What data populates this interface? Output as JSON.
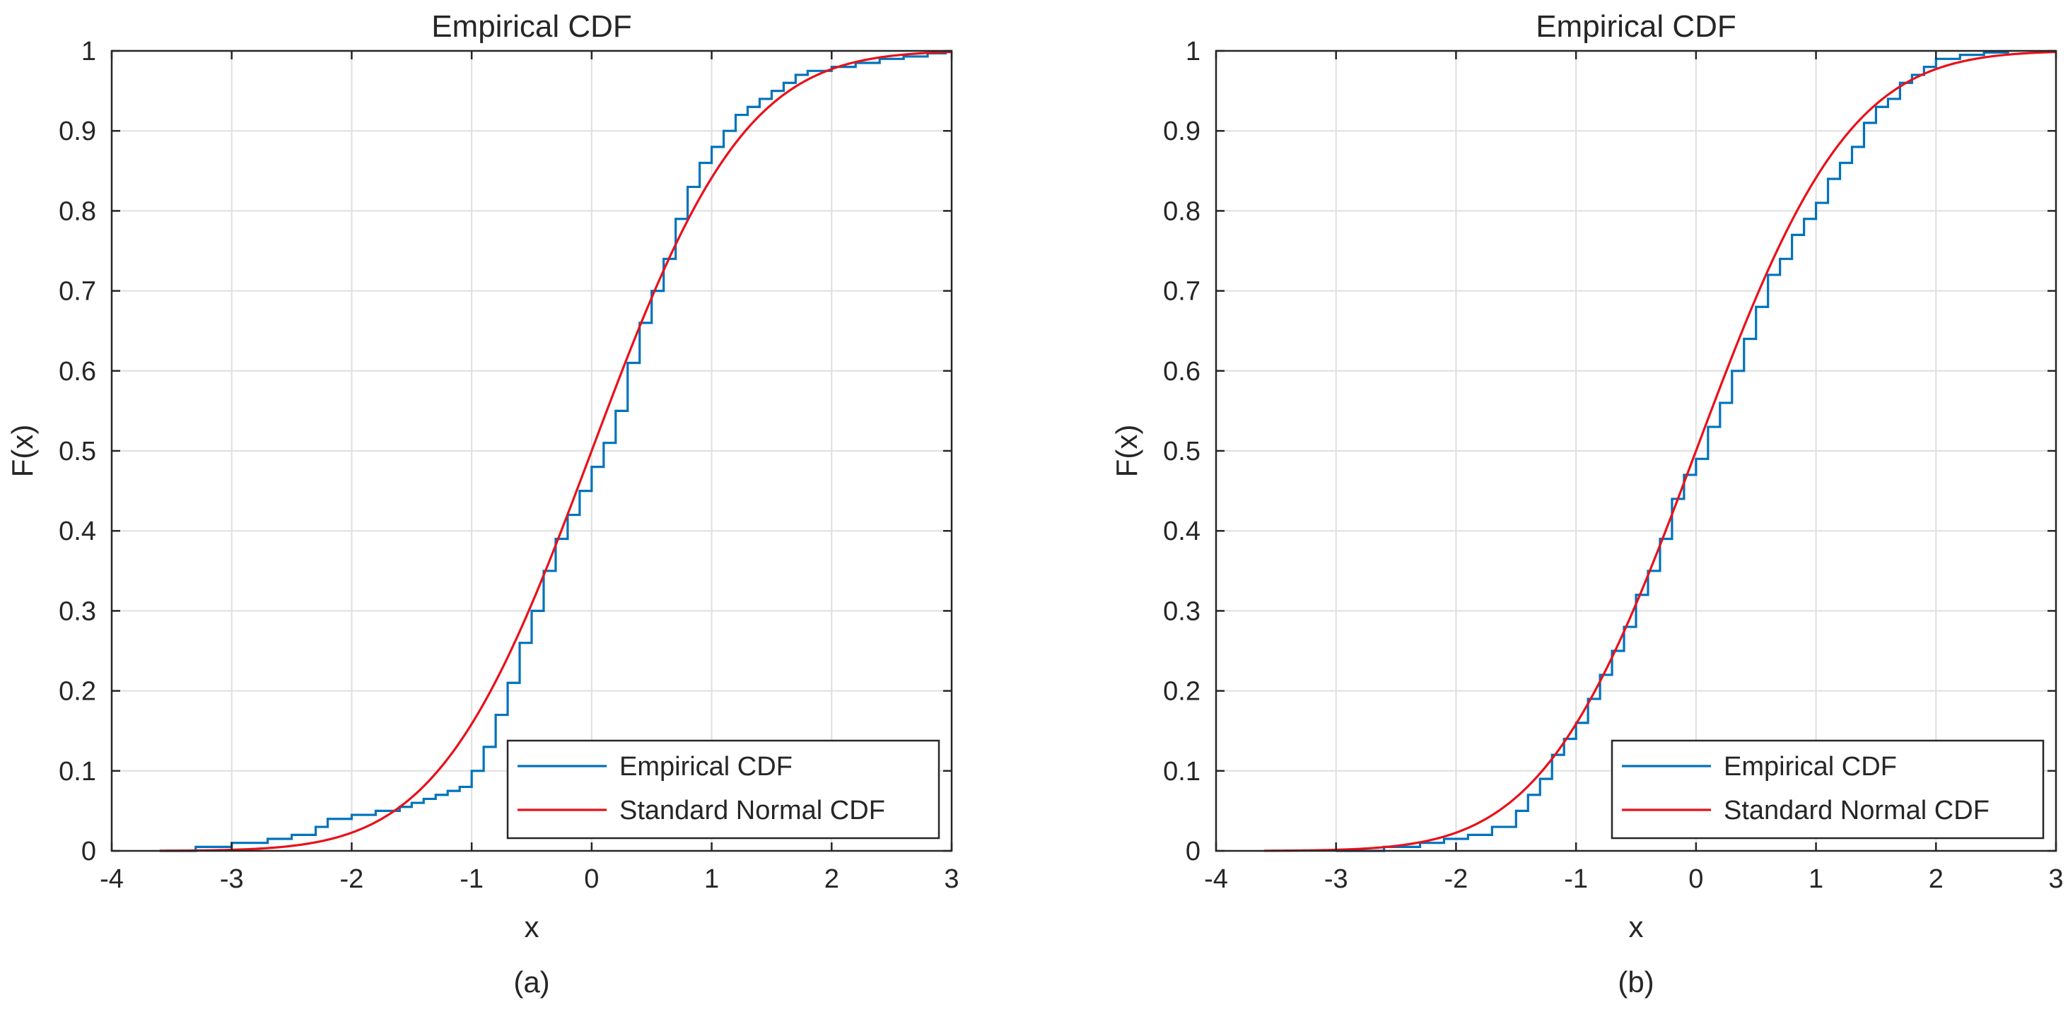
{
  "colors": {
    "empirical": "#0072BD",
    "normal": "#E8111A",
    "grid": "#DFDFDF",
    "axis": "#262626",
    "background": "#FFFFFF"
  },
  "chart_data": [
    {
      "type": "line",
      "panel_label": "(a)",
      "title": "Empirical CDF",
      "xlabel": "x",
      "ylabel": "F(x)",
      "xlim": [
        -4,
        3
      ],
      "ylim": [
        0,
        1
      ],
      "xticks": [
        "-4",
        "-3",
        "-2",
        "-1",
        "0",
        "1",
        "2",
        "3"
      ],
      "yticks": [
        "0",
        "0.1",
        "0.2",
        "0.3",
        "0.4",
        "0.5",
        "0.6",
        "0.7",
        "0.8",
        "0.9",
        "1"
      ],
      "grid": true,
      "legend": {
        "position": "bottom-right",
        "entries": [
          "Empirical CDF",
          "Standard Normal CDF"
        ]
      },
      "series": [
        {
          "name": "Empirical CDF",
          "style": "stairs",
          "x": [
            -3.6,
            -3.3,
            -3.0,
            -2.7,
            -2.5,
            -2.3,
            -2.2,
            -2.0,
            -1.9,
            -1.8,
            -1.7,
            -1.6,
            -1.5,
            -1.4,
            -1.3,
            -1.2,
            -1.1,
            -1.0,
            -0.9,
            -0.8,
            -0.7,
            -0.6,
            -0.5,
            -0.4,
            -0.3,
            -0.2,
            -0.1,
            0.0,
            0.1,
            0.2,
            0.3,
            0.4,
            0.5,
            0.6,
            0.7,
            0.8,
            0.9,
            1.0,
            1.1,
            1.2,
            1.3,
            1.4,
            1.5,
            1.6,
            1.7,
            1.8,
            2.0,
            2.2,
            2.4,
            2.6,
            2.8,
            2.95
          ],
          "y": [
            0.0,
            0.005,
            0.01,
            0.015,
            0.02,
            0.03,
            0.04,
            0.045,
            0.045,
            0.05,
            0.05,
            0.055,
            0.06,
            0.065,
            0.07,
            0.075,
            0.08,
            0.1,
            0.13,
            0.17,
            0.21,
            0.26,
            0.3,
            0.35,
            0.39,
            0.42,
            0.45,
            0.48,
            0.51,
            0.55,
            0.61,
            0.66,
            0.7,
            0.74,
            0.79,
            0.83,
            0.86,
            0.88,
            0.9,
            0.92,
            0.93,
            0.94,
            0.95,
            0.96,
            0.97,
            0.975,
            0.98,
            0.985,
            0.99,
            0.993,
            0.997,
            1.0
          ]
        },
        {
          "name": "Standard Normal CDF",
          "style": "normal-cdf",
          "mu": 0,
          "sigma": 1,
          "x_range": [
            -3.6,
            3
          ]
        }
      ]
    },
    {
      "type": "line",
      "panel_label": "(b)",
      "title": "Empirical CDF",
      "xlabel": "x",
      "ylabel": "F(x)",
      "xlim": [
        -4,
        3
      ],
      "ylim": [
        0,
        1
      ],
      "xticks": [
        "-4",
        "-3",
        "-2",
        "-1",
        "0",
        "1",
        "2",
        "3"
      ],
      "yticks": [
        "0",
        "0.1",
        "0.2",
        "0.3",
        "0.4",
        "0.5",
        "0.6",
        "0.7",
        "0.8",
        "0.9",
        "1"
      ],
      "grid": true,
      "legend": {
        "position": "bottom-right",
        "entries": [
          "Empirical CDF",
          "Standard Normal CDF"
        ]
      },
      "series": [
        {
          "name": "Empirical CDF",
          "style": "stairs",
          "x": [
            -3.0,
            -2.6,
            -2.3,
            -2.1,
            -1.9,
            -1.7,
            -1.5,
            -1.4,
            -1.3,
            -1.2,
            -1.1,
            -1.0,
            -0.9,
            -0.8,
            -0.7,
            -0.6,
            -0.5,
            -0.4,
            -0.3,
            -0.2,
            -0.1,
            0.0,
            0.1,
            0.2,
            0.3,
            0.4,
            0.5,
            0.6,
            0.7,
            0.8,
            0.9,
            1.0,
            1.1,
            1.2,
            1.3,
            1.4,
            1.5,
            1.6,
            1.7,
            1.8,
            1.9,
            2.0,
            2.2,
            2.4,
            2.6
          ],
          "y": [
            0.0,
            0.005,
            0.01,
            0.015,
            0.02,
            0.03,
            0.05,
            0.07,
            0.09,
            0.12,
            0.14,
            0.16,
            0.19,
            0.22,
            0.25,
            0.28,
            0.32,
            0.35,
            0.39,
            0.44,
            0.47,
            0.49,
            0.53,
            0.56,
            0.6,
            0.64,
            0.68,
            0.72,
            0.74,
            0.77,
            0.79,
            0.81,
            0.84,
            0.86,
            0.88,
            0.91,
            0.93,
            0.94,
            0.96,
            0.97,
            0.98,
            0.99,
            0.995,
            0.998,
            1.0
          ]
        },
        {
          "name": "Standard Normal CDF",
          "style": "normal-cdf",
          "mu": 0,
          "sigma": 1,
          "x_range": [
            -3.6,
            3
          ]
        }
      ]
    }
  ]
}
